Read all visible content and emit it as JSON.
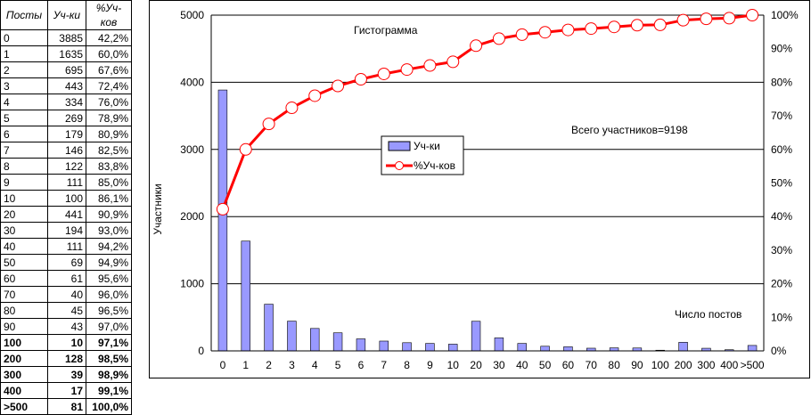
{
  "table": {
    "headers": [
      "Посты",
      "Уч-ки",
      "%Уч-ков"
    ],
    "rows": [
      {
        "posts": "0",
        "users": "3885",
        "pct": "42,2%",
        "bold": false
      },
      {
        "posts": "1",
        "users": "1635",
        "pct": "60,0%",
        "bold": false
      },
      {
        "posts": "2",
        "users": "695",
        "pct": "67,6%",
        "bold": false
      },
      {
        "posts": "3",
        "users": "443",
        "pct": "72,4%",
        "bold": false
      },
      {
        "posts": "4",
        "users": "334",
        "pct": "76,0%",
        "bold": false
      },
      {
        "posts": "5",
        "users": "269",
        "pct": "78,9%",
        "bold": false
      },
      {
        "posts": "6",
        "users": "179",
        "pct": "80,9%",
        "bold": false
      },
      {
        "posts": "7",
        "users": "146",
        "pct": "82,5%",
        "bold": false
      },
      {
        "posts": "8",
        "users": "122",
        "pct": "83,8%",
        "bold": false
      },
      {
        "posts": "9",
        "users": "111",
        "pct": "85,0%",
        "bold": false
      },
      {
        "posts": "10",
        "users": "100",
        "pct": "86,1%",
        "bold": false
      },
      {
        "posts": "20",
        "users": "441",
        "pct": "90,9%",
        "bold": false
      },
      {
        "posts": "30",
        "users": "194",
        "pct": "93,0%",
        "bold": false
      },
      {
        "posts": "40",
        "users": "111",
        "pct": "94,2%",
        "bold": false
      },
      {
        "posts": "50",
        "users": "69",
        "pct": "94,9%",
        "bold": false
      },
      {
        "posts": "60",
        "users": "61",
        "pct": "95,6%",
        "bold": false
      },
      {
        "posts": "70",
        "users": "40",
        "pct": "96,0%",
        "bold": false
      },
      {
        "posts": "80",
        "users": "45",
        "pct": "96,5%",
        "bold": false
      },
      {
        "posts": "90",
        "users": "43",
        "pct": "97,0%",
        "bold": false
      },
      {
        "posts": "100",
        "users": "10",
        "pct": "97,1%",
        "bold": true
      },
      {
        "posts": "200",
        "users": "128",
        "pct": "98,5%",
        "bold": true
      },
      {
        "posts": "300",
        "users": "39",
        "pct": "98,9%",
        "bold": true
      },
      {
        "posts": "400",
        "users": "17",
        "pct": "99,1%",
        "bold": true
      },
      {
        "posts": ">500",
        "users": "81",
        "pct": "100,0%",
        "bold": true
      }
    ]
  },
  "chart_data": {
    "type": "bar",
    "title": "Гистограмма",
    "annotation_total": "Всего участников=9198",
    "xlabel": "Число постов",
    "ylabel": "Участники",
    "categories": [
      "0",
      "1",
      "2",
      "3",
      "4",
      "5",
      "6",
      "7",
      "8",
      "9",
      "10",
      "20",
      "30",
      "40",
      "50",
      "60",
      "70",
      "80",
      "90",
      "100",
      "200",
      "300",
      "400",
      ">500"
    ],
    "series": [
      {
        "name": "Уч-ки",
        "type": "bar",
        "axis": "left",
        "color": "#9999ff",
        "values": [
          3885,
          1635,
          695,
          443,
          334,
          269,
          179,
          146,
          122,
          111,
          100,
          441,
          194,
          111,
          69,
          61,
          40,
          45,
          43,
          10,
          128,
          39,
          17,
          81
        ]
      },
      {
        "name": "%Уч-ков",
        "type": "line",
        "axis": "right",
        "color": "#ff0000",
        "values": [
          42.2,
          60.0,
          67.6,
          72.4,
          76.0,
          78.9,
          80.9,
          82.5,
          83.8,
          85.0,
          86.1,
          90.9,
          93.0,
          94.2,
          94.9,
          95.6,
          96.0,
          96.5,
          97.0,
          97.1,
          98.5,
          98.9,
          99.1,
          100.0
        ]
      }
    ],
    "ylim": [
      0,
      5000
    ],
    "yticks": [
      "0",
      "1000",
      "2000",
      "3000",
      "4000",
      "5000"
    ],
    "y2lim": [
      0,
      100
    ],
    "y2ticks": [
      "0%",
      "10%",
      "20%",
      "30%",
      "40%",
      "50%",
      "60%",
      "70%",
      "80%",
      "90%",
      "100%"
    ],
    "grid": true,
    "legend": "center"
  }
}
